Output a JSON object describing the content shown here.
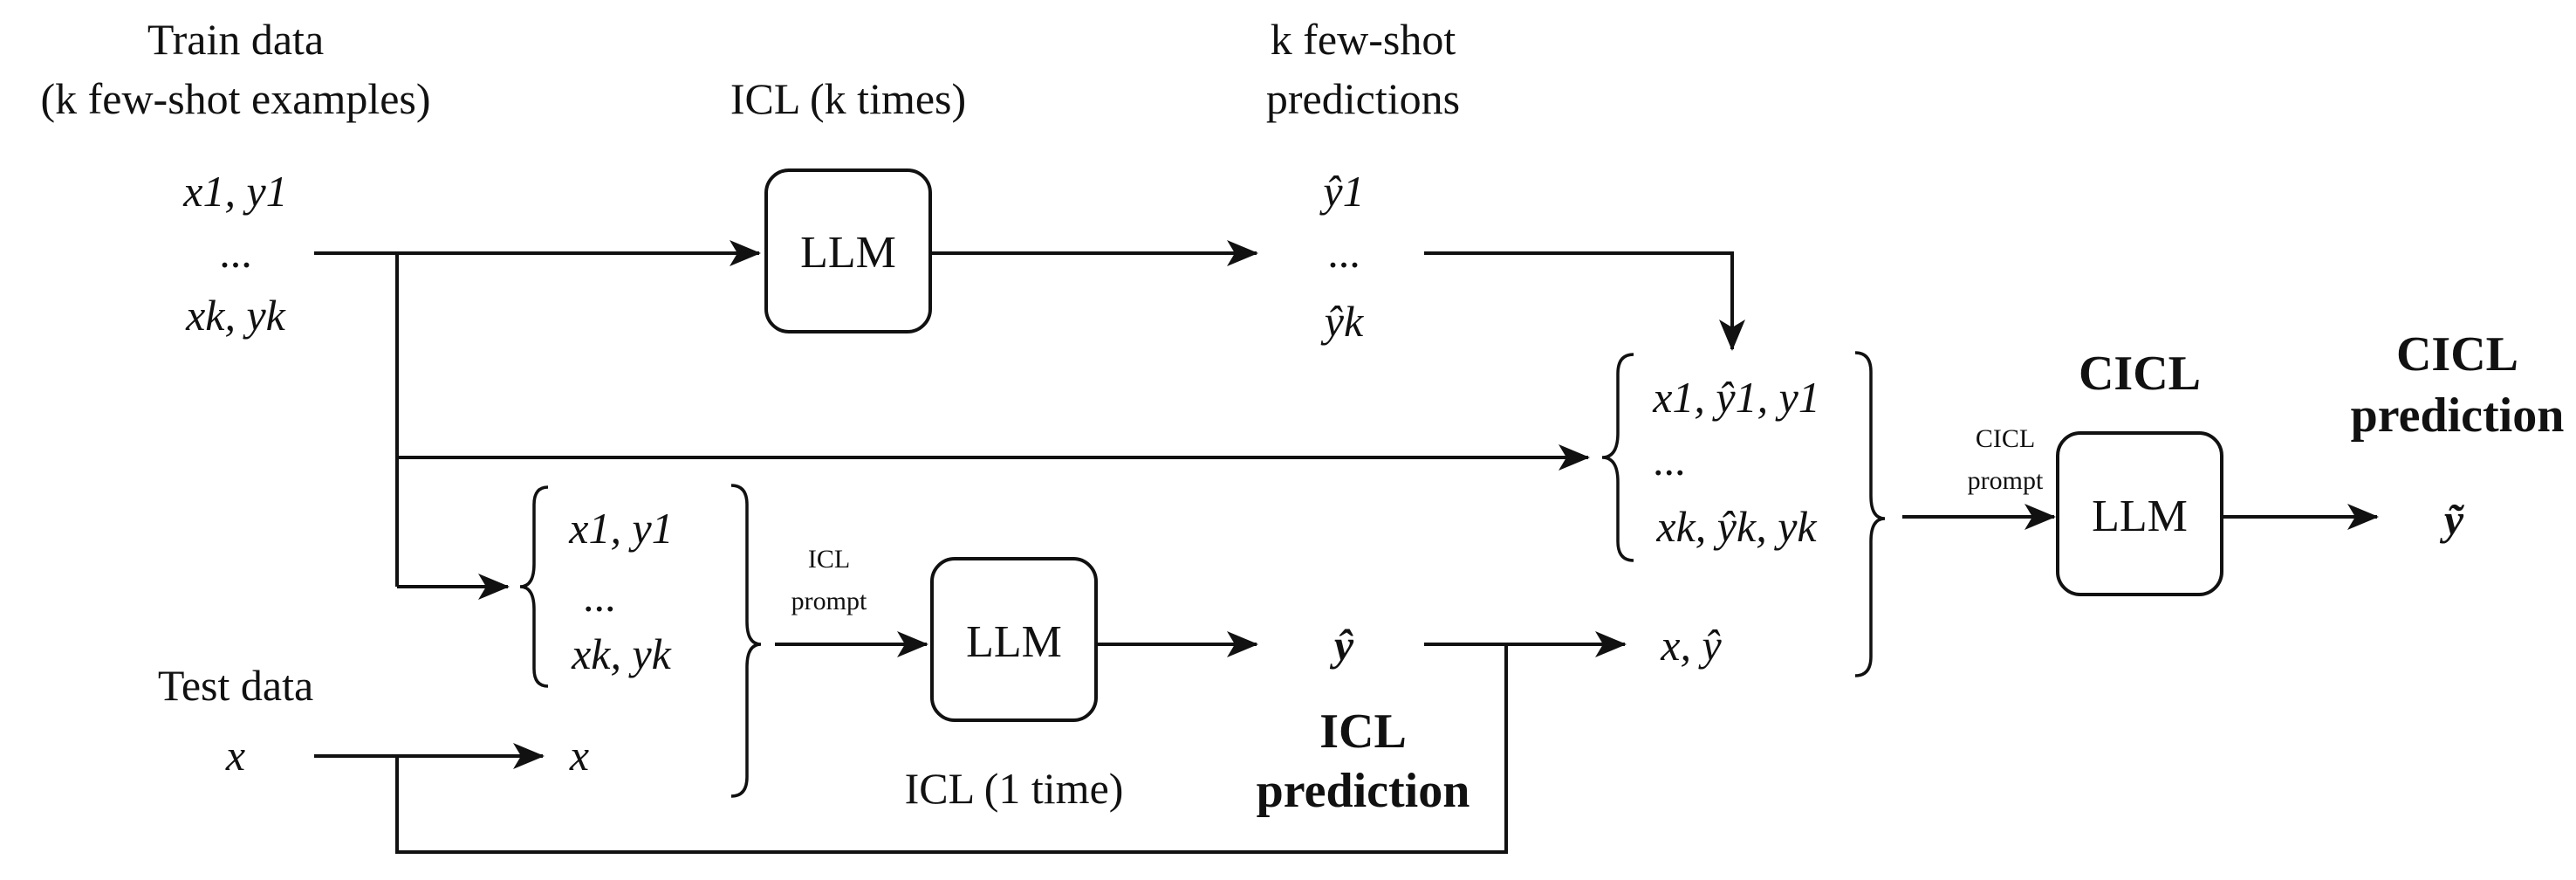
{
  "train": {
    "title_line1": "Train data",
    "title_line2": "(k few-shot examples)",
    "pair_first": "x1, y1",
    "ellipsis": "...",
    "pair_last": "xk, yk"
  },
  "icl_k": {
    "title": "ICL (k times)",
    "llm_label": "LLM"
  },
  "fewshot_preds": {
    "title_line1": "k few-shot",
    "title_line2": "predictions",
    "first": "ŷ1",
    "ellipsis": "...",
    "last": "ŷk"
  },
  "icl_prompt": {
    "pair_first": "x1, y1",
    "ellipsis": "...",
    "pair_last": "xk, yk",
    "query": "x",
    "caption_line1": "ICL",
    "caption_line2": "prompt"
  },
  "test": {
    "title": "Test data",
    "x": "x"
  },
  "icl_1": {
    "llm_label": "LLM",
    "caption": "ICL (1 time)",
    "output": "ŷ",
    "pred_line1": "ICL",
    "pred_line2": "prediction"
  },
  "cicl_prompt": {
    "triple_first": "x1, ŷ1, y1",
    "ellipsis": "...",
    "triple_last": "xk, ŷk, yk",
    "query": "x, ŷ",
    "caption_line1": "CICL",
    "caption_line2": "prompt"
  },
  "cicl": {
    "title": "CICL",
    "llm_label": "LLM",
    "pred_line1": "CICL",
    "pred_line2": "prediction",
    "output": "ỹ"
  }
}
